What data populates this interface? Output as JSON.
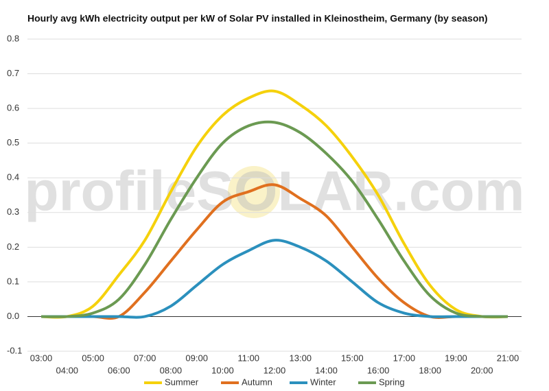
{
  "chart_data": {
    "type": "line",
    "title": "Hourly avg kWh electricity output per kW of Solar PV installed in Kleinostheim, Germany (by season)",
    "watermark": "profileSOLAR.com",
    "categories": [
      "03:00",
      "04:00",
      "05:00",
      "06:00",
      "07:00",
      "08:00",
      "09:00",
      "10:00",
      "11:00",
      "12:00",
      "13:00",
      "14:00",
      "15:00",
      "16:00",
      "17:00",
      "18:00",
      "19:00",
      "20:00",
      "21:00"
    ],
    "series": [
      {
        "name": "Summer",
        "color": "#f5d10c",
        "values": [
          0,
          0,
          0.03,
          0.12,
          0.22,
          0.36,
          0.49,
          0.58,
          0.63,
          0.65,
          0.61,
          0.55,
          0.46,
          0.35,
          0.21,
          0.09,
          0.02,
          0,
          0
        ]
      },
      {
        "name": "Autumn",
        "color": "#e0701f",
        "values": [
          0,
          0,
          0,
          0,
          0.07,
          0.16,
          0.25,
          0.33,
          0.36,
          0.38,
          0.34,
          0.29,
          0.2,
          0.11,
          0.04,
          0,
          0,
          0,
          0
        ]
      },
      {
        "name": "Winter",
        "color": "#2b90bd",
        "values": [
          0,
          0,
          0,
          0,
          0,
          0.03,
          0.09,
          0.15,
          0.19,
          0.22,
          0.2,
          0.16,
          0.1,
          0.04,
          0.01,
          0,
          0,
          0,
          0
        ]
      },
      {
        "name": "Spring",
        "color": "#6b9a52",
        "values": [
          0,
          0,
          0.01,
          0.05,
          0.15,
          0.28,
          0.4,
          0.5,
          0.55,
          0.56,
          0.53,
          0.47,
          0.39,
          0.28,
          0.16,
          0.06,
          0.01,
          0,
          0
        ]
      }
    ],
    "ylim": [
      -0.1,
      0.8
    ],
    "yticks": [
      -0.1,
      {
        "value": 0,
        "label": "0.0"
      },
      0.1,
      0.2,
      0.3,
      0.4,
      0.5,
      0.6,
      0.7,
      0.8
    ],
    "grid": true
  }
}
